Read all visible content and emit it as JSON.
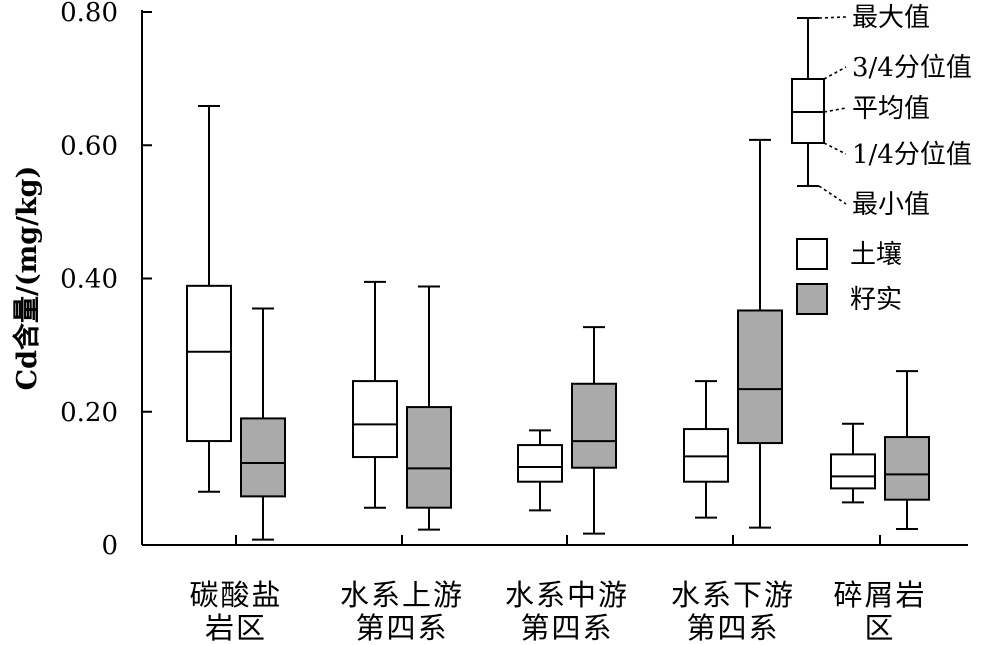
{
  "chart_data": {
    "type": "box",
    "ylabel": "Cd含量/(mg/kg)",
    "ylim": [
      0,
      0.8
    ],
    "yticks": [
      {
        "value": 0,
        "label": "0"
      },
      {
        "value": 0.2,
        "label": "0.20"
      },
      {
        "value": 0.4,
        "label": "0.40"
      },
      {
        "value": 0.6,
        "label": "0.60"
      },
      {
        "value": 0.8,
        "label": "0.80"
      }
    ],
    "categories": [
      {
        "lines": [
          "碳酸盐",
          "岩区"
        ]
      },
      {
        "lines": [
          "水系上游",
          "第四系"
        ]
      },
      {
        "lines": [
          "水系中游",
          "第四系"
        ]
      },
      {
        "lines": [
          "水系下游",
          "第四系"
        ]
      },
      {
        "lines": [
          "碎屑岩",
          "区"
        ]
      }
    ],
    "series": [
      {
        "name": "土壤",
        "color": "#ffffff",
        "boxes": [
          {
            "min": 0.08,
            "q1": 0.156,
            "mean": 0.29,
            "q3": 0.389,
            "max": 0.659
          },
          {
            "min": 0.056,
            "q1": 0.132,
            "mean": 0.181,
            "q3": 0.246,
            "max": 0.395
          },
          {
            "min": 0.052,
            "q1": 0.095,
            "mean": 0.117,
            "q3": 0.15,
            "max": 0.172
          },
          {
            "min": 0.041,
            "q1": 0.095,
            "mean": 0.133,
            "q3": 0.174,
            "max": 0.246
          },
          {
            "min": 0.064,
            "q1": 0.085,
            "mean": 0.103,
            "q3": 0.136,
            "max": 0.182
          }
        ]
      },
      {
        "name": "籽实",
        "color": "#aaaaaa",
        "boxes": [
          {
            "min": 0.008,
            "q1": 0.073,
            "mean": 0.123,
            "q3": 0.19,
            "max": 0.355
          },
          {
            "min": 0.023,
            "q1": 0.056,
            "mean": 0.115,
            "q3": 0.207,
            "max": 0.388
          },
          {
            "min": 0.017,
            "q1": 0.116,
            "mean": 0.156,
            "q3": 0.242,
            "max": 0.327
          },
          {
            "min": 0.026,
            "q1": 0.153,
            "mean": 0.234,
            "q3": 0.352,
            "max": 0.608
          },
          {
            "min": 0.024,
            "q1": 0.068,
            "mean": 0.106,
            "q3": 0.162,
            "max": 0.261
          }
        ]
      }
    ],
    "legend": {
      "placement": "top-right",
      "key": {
        "max": "最大值",
        "q3": "3/4分位值",
        "mean": "平均值",
        "q1": "1/4分位值",
        "min": "最小值"
      }
    }
  }
}
